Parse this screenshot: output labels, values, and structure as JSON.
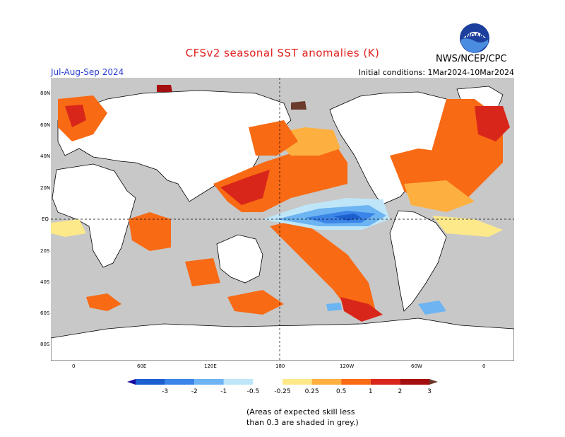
{
  "header": {
    "title": "CFSv2 seasonal SST anomalies (K)",
    "season": "Jul-Aug-Sep 2024",
    "init": "Initial conditions: 1Mar2024-10Mar2024",
    "agency": "NWS/NCEP/CPC",
    "logo_text": "NOAA"
  },
  "axes": {
    "lat_labels": [
      "80N",
      "60N",
      "40N",
      "20N",
      "EQ",
      "20S",
      "40S",
      "60S",
      "80S"
    ],
    "lon_labels": [
      "0",
      "60E",
      "120E",
      "180",
      "120W",
      "60W",
      "0"
    ]
  },
  "colorbar": {
    "levels": [
      "-3",
      "-2",
      "-1",
      "-0.5",
      "-0.25",
      "0.25",
      "0.5",
      "1",
      "2",
      "3"
    ],
    "colors": [
      "#1a0aa0",
      "#1e5fd0",
      "#3b85e8",
      "#6cb4f2",
      "#bfe6f8",
      "#ffffff",
      "#fde98a",
      "#fdb040",
      "#f86a14",
      "#d9261a",
      "#a40e0e",
      "#6b3a2a"
    ]
  },
  "footnote": {
    "line1": "(Areas of expected skill less",
    "line2": "than 0.3 are shaded in grey.)"
  }
}
